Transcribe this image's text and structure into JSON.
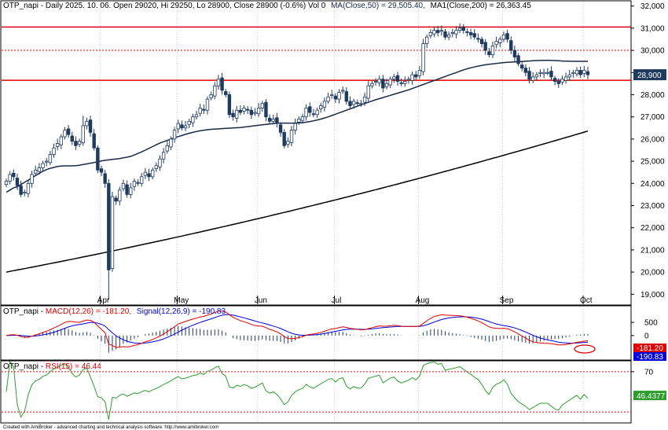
{
  "header": {
    "price_title": "OTP_napi - Daily 2025. 10. 06. Open 29020, Hi 29250, Lo 28900, Close 28900 (-0.6%) Vol 0",
    "ma50_label": "MA(Close,50) = 29,505.40,",
    "ma200_label": "MA1(Close,200) = 26,363.45",
    "macd_prefix": "OTP_napi - ",
    "macd_label": "MACD(12,26) = -181.20,",
    "signal_label": "Signal(12,26,9) = -190.83",
    "rsi_prefix": "OTP_napi - ",
    "rsi_label": "RSI(15) = 46.44"
  },
  "footer": "Created with AmiBroker - advanced charting and technical analysis software. http://www.amibroker.com",
  "colors": {
    "up_candle": "#ffffff",
    "down_candle": "#1f3a5f",
    "candle_outline": "#1f3a5f",
    "ma50": "#1a2a44",
    "ma200": "#000000",
    "resistance": "#e00000",
    "macd": "#e00000",
    "signal": "#0000dd",
    "histogram": "#1f3a5f",
    "rsi": "#2e9d2e",
    "price_tag": "#1f3a5f",
    "macd_tag": "#e00000",
    "signal_tag": "#0000dd",
    "rsi_tag": "#2e9d2e"
  },
  "chart_data": [
    {
      "type": "candlestick",
      "panel": "price",
      "y_ticks": [
        19000,
        20000,
        21000,
        22000,
        23000,
        24000,
        25000,
        26000,
        27000,
        28000,
        29000,
        30000,
        31000,
        32000
      ],
      "y_tick_labels": [
        "19,000",
        "20,000",
        "21,000",
        "22,000",
        "23,000",
        "24,000",
        "25,000",
        "26,000",
        "27,000",
        "28,000",
        "29,000",
        "30,000",
        "31,000",
        "32,000"
      ],
      "ylim": [
        18550,
        32200
      ],
      "x_month_labels": [
        {
          "label": "Apr",
          "index": 27
        },
        {
          "label": "May",
          "index": 48
        },
        {
          "label": "Jun",
          "index": 70
        },
        {
          "label": "Jul",
          "index": 91
        },
        {
          "label": "Aug",
          "index": 114
        },
        {
          "label": "Sep",
          "index": 137
        },
        {
          "label": "Oct",
          "index": 159
        }
      ],
      "grid_vertical_at_months": true,
      "horizontal_lines": [
        {
          "value": 31050,
          "style": "solid"
        },
        {
          "value": 30000,
          "style": "dotted"
        },
        {
          "value": 28650,
          "style": "solid"
        }
      ],
      "last_price": 28900,
      "last_price_label": "28,900",
      "close": [
        24100,
        24400,
        24300,
        23900,
        23500,
        23600,
        24000,
        24400,
        24600,
        24700,
        24900,
        25000,
        25300,
        25600,
        25800,
        26100,
        26400,
        26200,
        25900,
        25700,
        25900,
        26600,
        26800,
        26300,
        25600,
        24600,
        24500,
        24000,
        20100,
        23400,
        23200,
        23700,
        24000,
        23500,
        23800,
        24100,
        24000,
        24300,
        24500,
        24300,
        24600,
        24800,
        25100,
        25400,
        25700,
        26000,
        26400,
        26700,
        26500,
        26600,
        26800,
        27000,
        27100,
        27400,
        27300,
        27800,
        28000,
        28400,
        28700,
        28200,
        28000,
        27100,
        27000,
        27300,
        27200,
        27400,
        27300,
        27100,
        27200,
        27400,
        27600,
        27000,
        26800,
        26900,
        26700,
        26300,
        25700,
        25900,
        26400,
        26700,
        26900,
        27000,
        27400,
        27200,
        27100,
        27300,
        27500,
        27700,
        27900,
        28000,
        27800,
        28100,
        28200,
        27700,
        27500,
        27700,
        27600,
        27600,
        27900,
        28400,
        28500,
        28600,
        28700,
        28300,
        28500,
        28700,
        28800,
        28600,
        28500,
        28600,
        28700,
        28900,
        28800,
        29100,
        30300,
        30600,
        30800,
        30900,
        30800,
        30900,
        30600,
        30700,
        30800,
        30900,
        31000,
        30900,
        30800,
        30700,
        30600,
        30500,
        30300,
        30000,
        29800,
        30200,
        30400,
        30500,
        30700,
        30500,
        30000,
        29700,
        29400,
        29200,
        29000,
        28700,
        28800,
        28900,
        29000,
        29000,
        29000,
        28800,
        28600,
        28500,
        28700,
        28800,
        28900,
        29000,
        29100,
        28900,
        29100,
        28900
      ],
      "ma50": [
        23600,
        23700,
        23800,
        23850,
        23950,
        24050,
        24150,
        24250,
        24350,
        24450,
        24550,
        24620,
        24680,
        24720,
        24760,
        24780,
        24790,
        24790,
        24790,
        24800,
        24820,
        24850,
        24880,
        24910,
        24940,
        24980,
        25010,
        25040,
        25060,
        25080,
        25100,
        25120,
        25150,
        25180,
        25220,
        25280,
        25350,
        25420,
        25500,
        25580,
        25660,
        25740,
        25820,
        25880,
        25940,
        26000,
        26060,
        26110,
        26160,
        26210,
        26260,
        26300,
        26340,
        26370,
        26400,
        26420,
        26440,
        26450,
        26460,
        26470,
        26480,
        26490,
        26500,
        26510,
        26520,
        26540,
        26560,
        26580,
        26600,
        26620,
        26640,
        26660,
        26680,
        26700,
        26710,
        26720,
        26720,
        26720,
        26720,
        26720,
        26730,
        26740,
        26760,
        26790,
        26820,
        26860,
        26900,
        26950,
        27000,
        27060,
        27120,
        27180,
        27240,
        27300,
        27360,
        27420,
        27480,
        27540,
        27600,
        27660,
        27720,
        27770,
        27820,
        27870,
        27920,
        27970,
        28020,
        28070,
        28120,
        28170,
        28220,
        28280,
        28340,
        28400,
        28460,
        28520,
        28580,
        28640,
        28700,
        28760,
        28820,
        28880,
        28940,
        29000,
        29060,
        29120,
        29170,
        29210,
        29250,
        29290,
        29320,
        29350,
        29370,
        29390,
        29410,
        29430,
        29450,
        29460,
        29470,
        29480,
        29490,
        29500,
        29510,
        29520,
        29530,
        29540,
        29545,
        29550,
        29550,
        29545,
        29540,
        29530,
        29520,
        29515,
        29510,
        29505,
        29505,
        29505,
        29505,
        29505
      ],
      "ma200_start": 20000,
      "ma200_end": 26360
    },
    {
      "type": "line",
      "panel": "macd",
      "series": [
        {
          "name": "MACD(12,26)",
          "last": -181.2
        },
        {
          "name": "Signal(12,26,9)",
          "last": -190.83
        }
      ],
      "y_ticks": [
        500,
        0
      ],
      "y_tick_labels": [
        "500",
        "0"
      ],
      "ylim": [
        -900,
        1100
      ],
      "last_macd_label": "-181.20",
      "last_signal_label": "-190.83"
    },
    {
      "type": "line",
      "panel": "rsi",
      "series": [
        {
          "name": "RSI(15)",
          "last": 46.4377
        }
      ],
      "y_ticks": [
        70
      ],
      "y_tick_labels": [
        "70"
      ],
      "ylim": [
        20,
        80
      ],
      "reference_lines": [
        70,
        30
      ],
      "last_rsi_label": "46.4377"
    }
  ]
}
